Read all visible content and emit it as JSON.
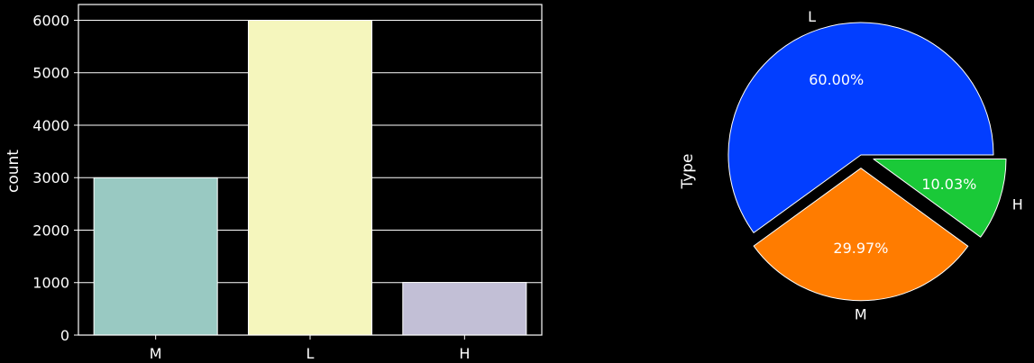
{
  "chart_data": [
    {
      "type": "bar",
      "categories": [
        "M",
        "L",
        "H"
      ],
      "values": [
        2997,
        6000,
        1003
      ],
      "xlabel": "",
      "ylabel": "count",
      "ylim": [
        0,
        6300
      ],
      "yticks": [
        0,
        1000,
        2000,
        3000,
        4000,
        5000,
        6000
      ],
      "grid": true,
      "colors": [
        "#99c9c2",
        "#f5f6bd",
        "#c2bfd6"
      ]
    },
    {
      "type": "pie",
      "ylabel": "Type",
      "labels": [
        "L",
        "M",
        "H"
      ],
      "values": [
        60.0,
        29.97,
        10.03
      ],
      "value_labels": [
        "60.00%",
        "29.97%",
        "10.03%"
      ],
      "exploded": [
        false,
        true,
        true
      ],
      "colors": [
        "#023eff",
        "#ff7c00",
        "#1ac938"
      ]
    }
  ]
}
